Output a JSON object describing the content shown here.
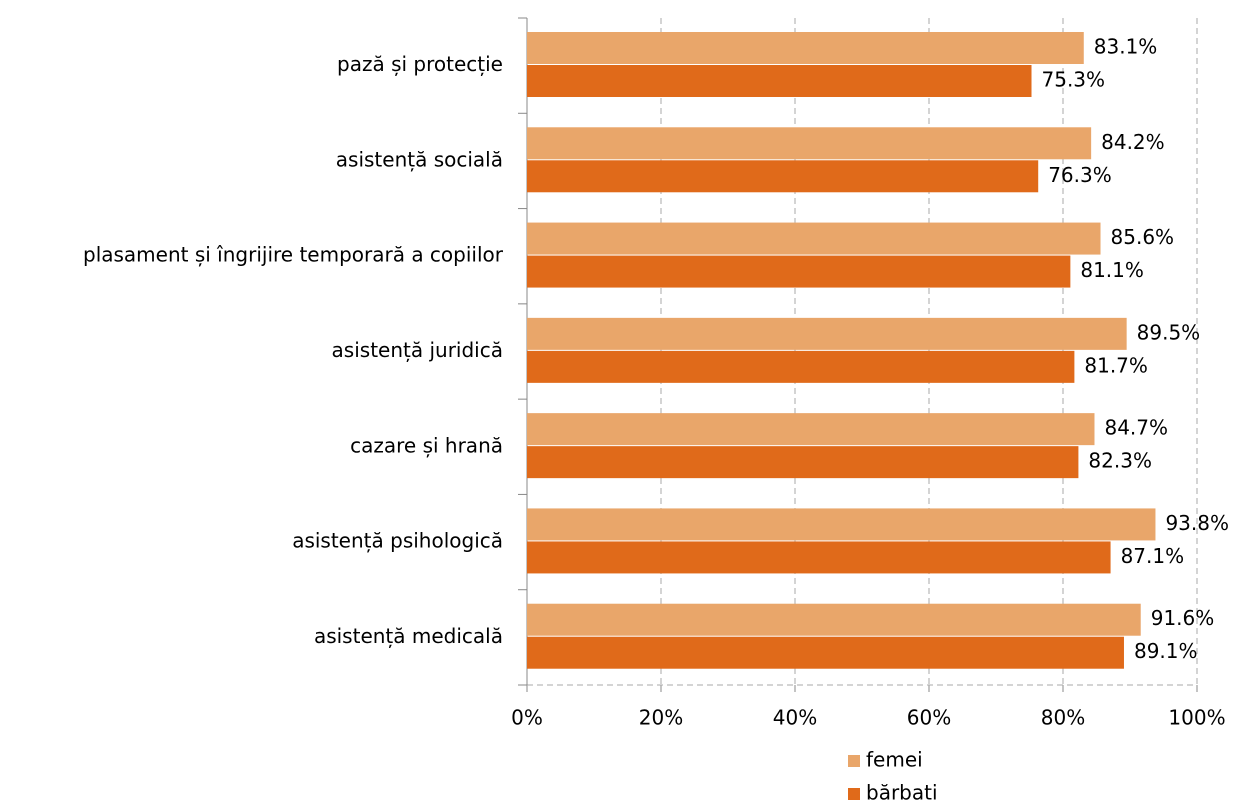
{
  "chart_data": {
    "type": "barh",
    "categories": [
      "pază și protecție",
      "asistență socială",
      "plasament și îngrijire temporară a copiilor",
      "asistență juridică",
      "cazare și hrană",
      "asistență psihologică",
      "asistență medicală"
    ],
    "series": [
      {
        "name": "femei",
        "color": "#e9a66a",
        "values": [
          83.1,
          84.2,
          85.6,
          89.5,
          84.7,
          93.8,
          91.6
        ],
        "value_labels": [
          "83.1%",
          "84.2%",
          "85.6%",
          "89.5%",
          "84.7%",
          "93.8%",
          "91.6%"
        ]
      },
      {
        "name": "bărbati",
        "color": "#e06a1a",
        "values": [
          75.3,
          76.3,
          81.1,
          81.7,
          82.3,
          87.1,
          89.1
        ],
        "value_labels": [
          "75.3%",
          "76.3%",
          "81.1%",
          "81.7%",
          "82.3%",
          "87.1%",
          "89.1%"
        ]
      }
    ],
    "xlim": [
      0,
      100
    ],
    "xticks": [
      {
        "value": 0,
        "label": "0%"
      },
      {
        "value": 20,
        "label": "20%"
      },
      {
        "value": 40,
        "label": "40%"
      },
      {
        "value": 60,
        "label": "60%"
      },
      {
        "value": 80,
        "label": "80%"
      },
      {
        "value": 100,
        "label": "100%"
      }
    ],
    "grid": true
  }
}
